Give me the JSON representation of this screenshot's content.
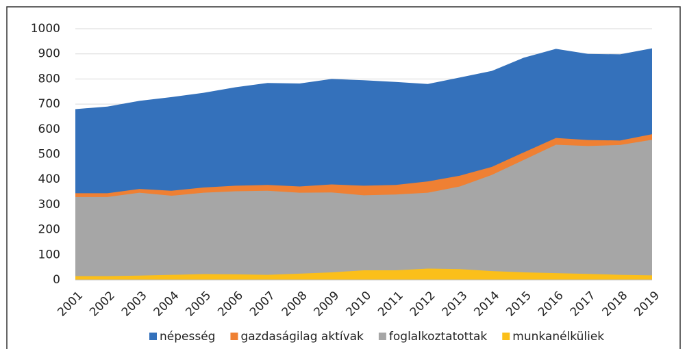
{
  "chart_data": {
    "type": "area",
    "categories": [
      "2001",
      "2002",
      "2003",
      "2004",
      "2005",
      "2006",
      "2007",
      "2008",
      "2009",
      "2010",
      "2011",
      "2012",
      "2013",
      "2014",
      "2015",
      "2016",
      "2017",
      "2018",
      "2019"
    ],
    "series": [
      {
        "name": "népesség",
        "color": "#3471bb",
        "values": [
          680,
          690,
          713,
          728,
          745,
          767,
          784,
          782,
          800,
          795,
          788,
          780,
          806,
          832,
          885,
          920,
          900,
          898,
          922
        ]
      },
      {
        "name": "gazdaságilag aktívak",
        "color": "#ef8033",
        "values": [
          345,
          345,
          362,
          355,
          368,
          375,
          378,
          372,
          380,
          375,
          378,
          392,
          415,
          450,
          508,
          565,
          557,
          555,
          580
        ]
      },
      {
        "name": "foglalkoztatottak",
        "color": "#a6a6a6",
        "values": [
          330,
          330,
          347,
          335,
          347,
          353,
          355,
          347,
          348,
          337,
          340,
          347,
          372,
          418,
          478,
          538,
          533,
          537,
          558
        ]
      },
      {
        "name": "munkanélküliek",
        "color": "#fbbf1a",
        "values": [
          15,
          15,
          17,
          20,
          23,
          22,
          20,
          25,
          30,
          38,
          38,
          45,
          43,
          35,
          30,
          27,
          24,
          20,
          18
        ]
      }
    ],
    "ylim": [
      0,
      1000
    ],
    "yticks": [
      0,
      100,
      200,
      300,
      400,
      500,
      600,
      700,
      800,
      900,
      1000
    ],
    "grid": true,
    "legend": "bottom"
  }
}
